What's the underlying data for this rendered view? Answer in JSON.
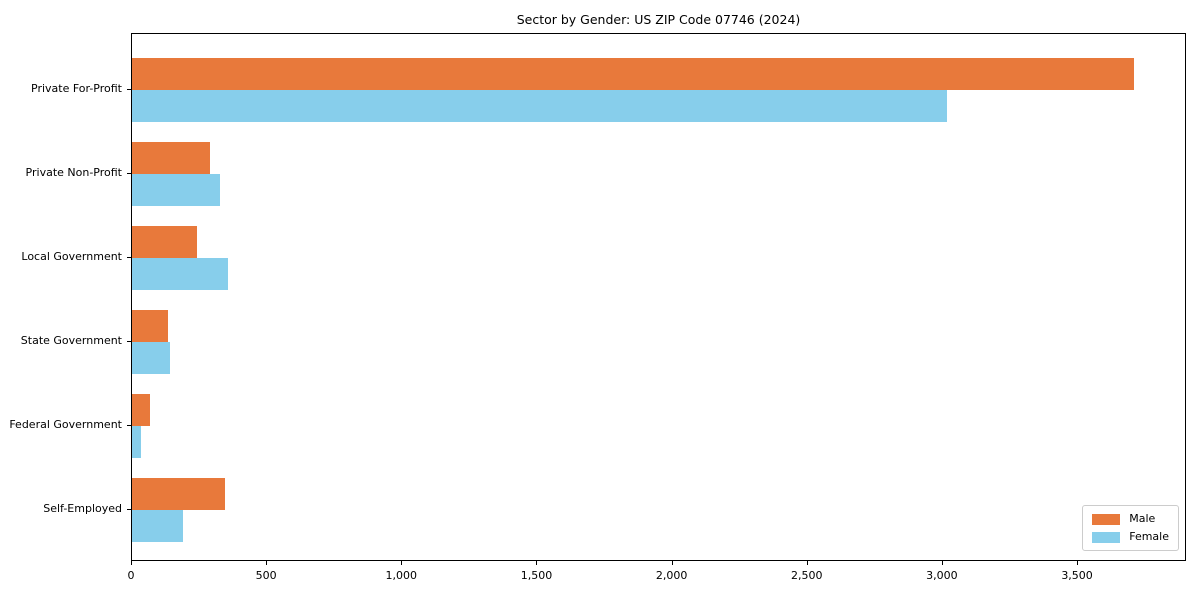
{
  "title": "Sector by Gender: US ZIP Code 07746 (2024)",
  "colors": {
    "male": "#E8793B",
    "female": "#87CEEB",
    "spine": "#000000",
    "text": "#000000",
    "legend_border": "#cccccc",
    "background": "#ffffff"
  },
  "legend": {
    "position": "lower right",
    "items": [
      {
        "label": "Male"
      },
      {
        "label": "Female"
      }
    ]
  },
  "chart_data": {
    "type": "bar",
    "orientation": "horizontal",
    "title": "Sector by Gender: US ZIP Code 07746 (2024)",
    "categories": [
      "Private For-Profit",
      "Private Non-Profit",
      "Local Government",
      "State Government",
      "Federal Government",
      "Self-Employed"
    ],
    "series": [
      {
        "name": "Male",
        "color": "#E8793B",
        "values": [
          3713,
          289,
          240,
          132,
          66,
          344
        ]
      },
      {
        "name": "Female",
        "color": "#87CEEB",
        "values": [
          3019,
          327,
          354,
          140,
          33,
          190
        ]
      }
    ],
    "xlabel": "",
    "ylabel": "",
    "xlim": [
      0,
      3903
    ],
    "xticks": [
      0,
      500,
      1000,
      1500,
      2000,
      2500,
      3000,
      3500
    ],
    "xtick_labels": [
      "0",
      "500",
      "1,000",
      "1,500",
      "2,000",
      "2,500",
      "3,000",
      "3,500"
    ],
    "grid": false,
    "legend_position": "lower right"
  }
}
